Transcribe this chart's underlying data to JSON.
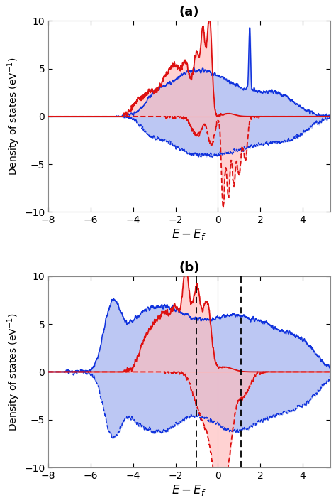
{
  "xlim": [
    -8,
    5.3
  ],
  "ylim": [
    -10,
    10
  ],
  "xticks": [
    -8,
    -6,
    -4,
    -2,
    0,
    2,
    4
  ],
  "yticks": [
    -10,
    -5,
    0,
    5,
    10
  ],
  "xlabel": "$E-E_f$",
  "ylabel": "Density of states (eV$^{-1}$)",
  "title_a": "(a)",
  "title_b": "(b)",
  "vline_color": "#aaaaaa",
  "blue_color": "#1133dd",
  "red_color": "#dd1111",
  "blue_fill_color": "#99aaee",
  "red_fill_color": "#ffbbbb",
  "dashed_vlines_b": [
    -1.0,
    1.1
  ],
  "seed": 7
}
